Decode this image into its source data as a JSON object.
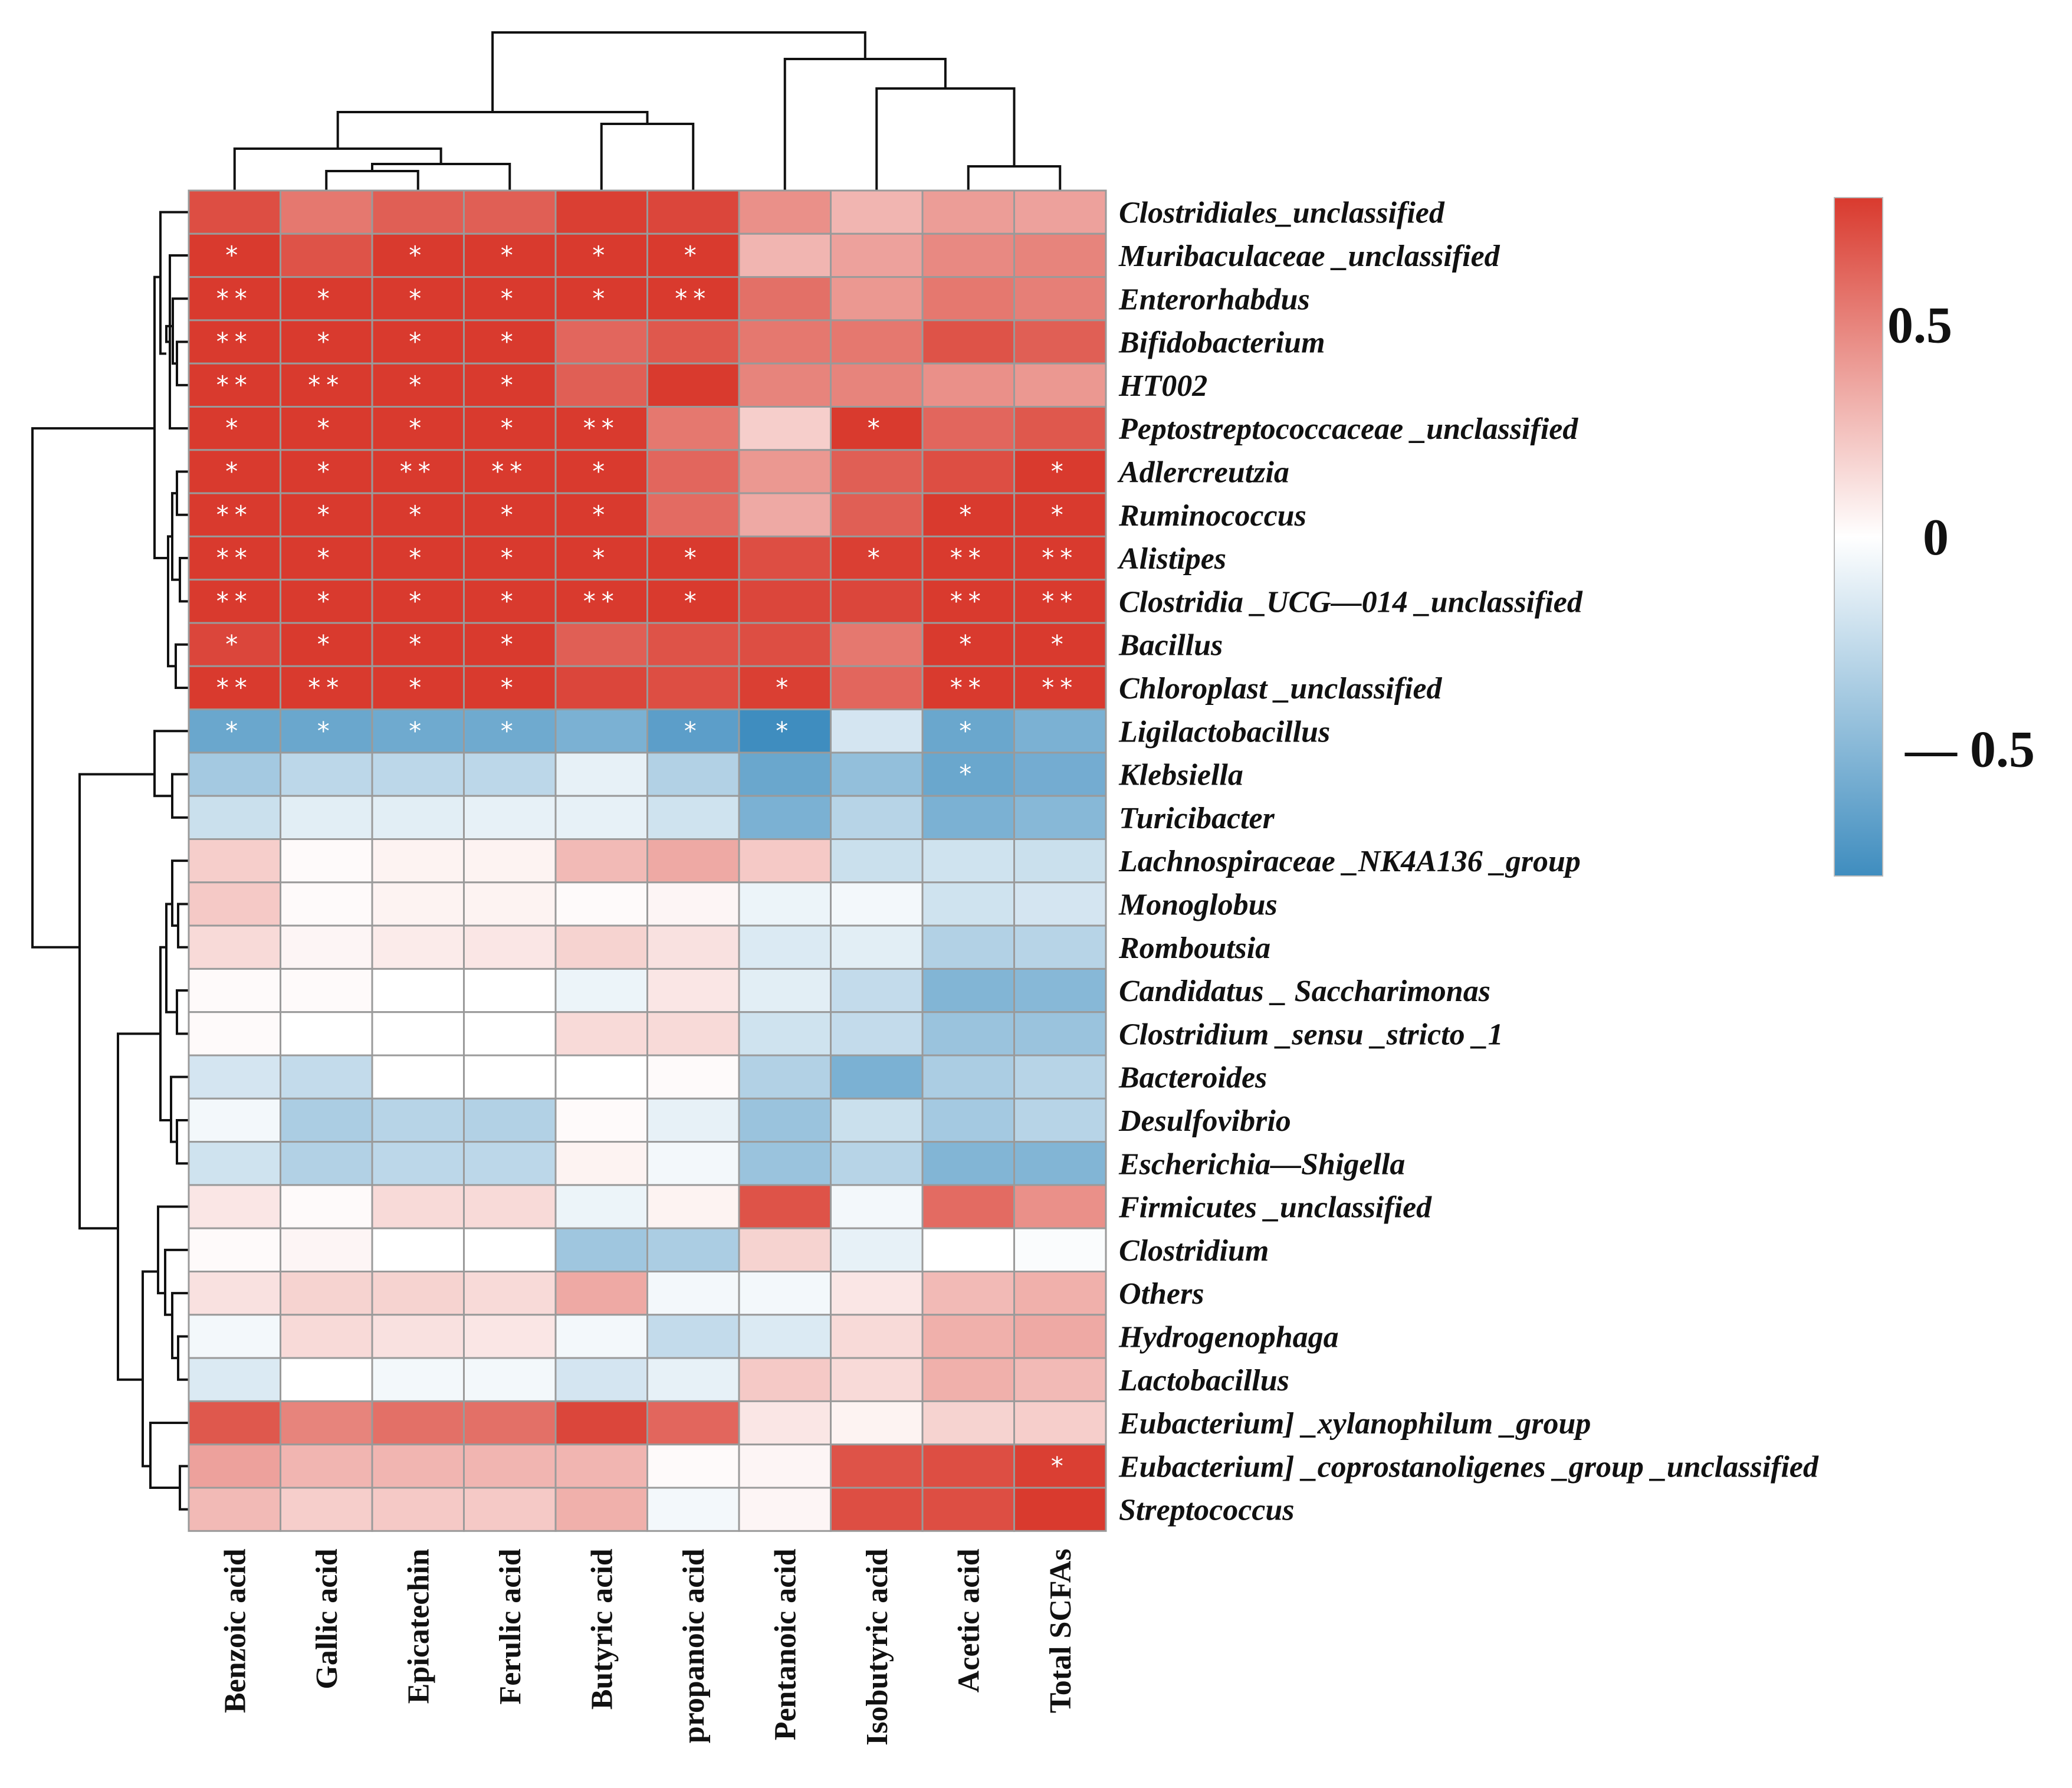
{
  "chart_data": {
    "type": "heatmap",
    "title": "",
    "columns": [
      "Benzoic acid",
      "Gallic acid",
      "Epicatechin",
      "Ferulic acid",
      "Butyric acid",
      "propanoic acid",
      "Pentanoic acid",
      "Isobutyric acid",
      "Acetic acid",
      "Total SCFAs"
    ],
    "rows": [
      "Clostridiales_unclassified",
      "Muribaculaceae _unclassified",
      "Enterorhabdus",
      "Bifidobacterium",
      "HT002",
      "Peptostreptococcaceae _unclassified",
      "Adlercreutzia",
      "Ruminococcus",
      "Alistipes",
      "Clostridia _UCG—014 _unclassified",
      "Bacillus",
      "Chloroplast _unclassified",
      "Ligilactobacillus",
      "Klebsiella",
      "Turicibacter",
      "Lachnospiraceae _NK4A136 _group",
      "Monoglobus",
      "Romboutsia",
      "Candidatus _ Saccharimonas",
      "Clostridium _sensu _stricto _1",
      "Bacteroides",
      "Desulfovibrio",
      "Escherichia—Shigella",
      "Firmicutes _unclassified",
      "Clostridium",
      "Others",
      "Hydrogenophaga",
      "Lactobacillus",
      "Eubacterium] _xylanophilum _group",
      "Eubacterium] _coprostanoligenes _group _unclassified",
      "Streptococcus"
    ],
    "values": [
      [
        0.72,
        0.55,
        0.65,
        0.65,
        0.78,
        0.75,
        0.45,
        0.3,
        0.4,
        0.38
      ],
      [
        0.82,
        0.7,
        0.82,
        0.82,
        0.85,
        0.85,
        0.3,
        0.38,
        0.48,
        0.5
      ],
      [
        0.88,
        0.82,
        0.85,
        0.85,
        0.82,
        0.95,
        0.58,
        0.42,
        0.55,
        0.52
      ],
      [
        0.88,
        0.82,
        0.85,
        0.85,
        0.62,
        0.68,
        0.55,
        0.55,
        0.7,
        0.65
      ],
      [
        0.9,
        0.88,
        0.85,
        0.85,
        0.65,
        0.8,
        0.5,
        0.5,
        0.45,
        0.42
      ],
      [
        0.85,
        0.85,
        0.85,
        0.85,
        0.92,
        0.55,
        0.2,
        0.82,
        0.62,
        0.68
      ],
      [
        0.88,
        0.85,
        0.88,
        0.88,
        0.8,
        0.62,
        0.42,
        0.65,
        0.72,
        0.8
      ],
      [
        0.88,
        0.85,
        0.85,
        0.85,
        0.8,
        0.6,
        0.35,
        0.65,
        0.8,
        0.85
      ],
      [
        0.88,
        0.85,
        0.85,
        0.85,
        0.82,
        0.85,
        0.72,
        0.78,
        0.9,
        0.92
      ],
      [
        0.88,
        0.85,
        0.85,
        0.85,
        0.92,
        0.85,
        0.75,
        0.75,
        0.92,
        0.92
      ],
      [
        0.75,
        0.82,
        0.85,
        0.85,
        0.65,
        0.7,
        0.72,
        0.55,
        0.85,
        0.85
      ],
      [
        0.88,
        0.9,
        0.85,
        0.85,
        0.75,
        0.72,
        0.78,
        0.62,
        0.92,
        0.95
      ],
      [
        -0.62,
        -0.62,
        -0.6,
        -0.6,
        -0.55,
        -0.68,
        -0.82,
        -0.18,
        -0.62,
        -0.55
      ],
      [
        -0.38,
        -0.28,
        -0.28,
        -0.28,
        -0.1,
        -0.32,
        -0.62,
        -0.45,
        -0.62,
        -0.58
      ],
      [
        -0.22,
        -0.12,
        -0.12,
        -0.1,
        -0.1,
        -0.2,
        -0.55,
        -0.3,
        -0.55,
        -0.5
      ],
      [
        0.2,
        0.02,
        0.05,
        0.05,
        0.28,
        0.35,
        0.22,
        -0.22,
        -0.2,
        -0.22
      ],
      [
        0.22,
        0.02,
        0.05,
        0.05,
        0.02,
        0.04,
        -0.08,
        -0.05,
        -0.2,
        -0.18
      ],
      [
        0.15,
        0.04,
        0.08,
        0.1,
        0.18,
        0.12,
        -0.15,
        -0.12,
        -0.32,
        -0.3
      ],
      [
        0.02,
        0.02,
        0.0,
        0.0,
        -0.08,
        0.1,
        -0.12,
        -0.25,
        -0.52,
        -0.5
      ],
      [
        0.02,
        0.0,
        0.0,
        0.0,
        0.15,
        0.15,
        -0.2,
        -0.25,
        -0.42,
        -0.42
      ],
      [
        -0.18,
        -0.25,
        0.0,
        0.0,
        0.0,
        0.02,
        -0.32,
        -0.55,
        -0.35,
        -0.3
      ],
      [
        -0.05,
        -0.35,
        -0.3,
        -0.32,
        0.02,
        -0.1,
        -0.42,
        -0.22,
        -0.38,
        -0.3
      ],
      [
        -0.2,
        -0.32,
        -0.28,
        -0.28,
        0.05,
        -0.05,
        -0.42,
        -0.3,
        -0.52,
        -0.52
      ],
      [
        0.1,
        0.02,
        0.15,
        0.15,
        -0.08,
        0.05,
        0.7,
        -0.05,
        0.6,
        0.45
      ],
      [
        0.02,
        0.04,
        0.0,
        0.0,
        -0.4,
        -0.35,
        0.18,
        -0.1,
        0.0,
        -0.02
      ],
      [
        0.12,
        0.18,
        0.18,
        0.15,
        0.35,
        -0.05,
        -0.05,
        0.1,
        0.28,
        0.32
      ],
      [
        -0.05,
        0.15,
        0.12,
        0.1,
        -0.05,
        -0.25,
        -0.15,
        0.15,
        0.32,
        0.35
      ],
      [
        -0.15,
        0.0,
        -0.05,
        -0.05,
        -0.18,
        -0.1,
        0.22,
        0.15,
        0.32,
        0.28
      ],
      [
        0.68,
        0.5,
        0.58,
        0.58,
        0.75,
        0.62,
        0.1,
        0.05,
        0.18,
        0.2
      ],
      [
        0.38,
        0.3,
        0.3,
        0.3,
        0.3,
        0.02,
        0.04,
        0.7,
        0.72,
        0.78
      ],
      [
        0.28,
        0.2,
        0.22,
        0.22,
        0.32,
        -0.05,
        0.04,
        0.72,
        0.72,
        0.8
      ]
    ],
    "significance": [
      [
        "",
        "",
        "",
        "",
        "",
        "",
        "",
        "",
        "",
        ""
      ],
      [
        "*",
        "",
        "*",
        "*",
        "*",
        "*",
        "",
        "",
        "",
        ""
      ],
      [
        "**",
        "*",
        "*",
        "*",
        "*",
        "**",
        "",
        "",
        "",
        ""
      ],
      [
        "**",
        "*",
        "*",
        "*",
        "",
        "",
        "",
        "",
        "",
        ""
      ],
      [
        "**",
        "**",
        "*",
        "*",
        "",
        "",
        "",
        "",
        "",
        ""
      ],
      [
        "*",
        "*",
        "*",
        "*",
        "**",
        "",
        "",
        "*",
        "",
        ""
      ],
      [
        "*",
        "*",
        "**",
        "**",
        "*",
        "",
        "",
        "",
        "",
        "*"
      ],
      [
        "**",
        "*",
        "*",
        "*",
        "*",
        "",
        "",
        "",
        "*",
        "*"
      ],
      [
        "**",
        "*",
        "*",
        "*",
        "*",
        "*",
        "",
        "*",
        "**",
        "**"
      ],
      [
        "**",
        "*",
        "*",
        "*",
        "**",
        "*",
        "",
        "",
        "**",
        "**"
      ],
      [
        "*",
        "*",
        "*",
        "*",
        "",
        "",
        "",
        "",
        "*",
        "*"
      ],
      [
        "**",
        "**",
        "*",
        "*",
        "",
        "",
        "*",
        "",
        "**",
        "**"
      ],
      [
        "*",
        "*",
        "*",
        "*",
        "",
        "*",
        "*",
        "",
        "*",
        ""
      ],
      [
        "",
        "",
        "",
        "",
        "",
        "",
        "",
        "",
        "*",
        ""
      ],
      [
        "",
        "",
        "",
        "",
        "",
        "",
        "",
        "",
        "",
        ""
      ],
      [
        "",
        "",
        "",
        "",
        "",
        "",
        "",
        "",
        "",
        ""
      ],
      [
        "",
        "",
        "",
        "",
        "",
        "",
        "",
        "",
        "",
        ""
      ],
      [
        "",
        "",
        "",
        "",
        "",
        "",
        "",
        "",
        "",
        ""
      ],
      [
        "",
        "",
        "",
        "",
        "",
        "",
        "",
        "",
        "",
        ""
      ],
      [
        "",
        "",
        "",
        "",
        "",
        "",
        "",
        "",
        "",
        ""
      ],
      [
        "",
        "",
        "",
        "",
        "",
        "",
        "",
        "",
        "",
        ""
      ],
      [
        "",
        "",
        "",
        "",
        "",
        "",
        "",
        "",
        "",
        ""
      ],
      [
        "",
        "",
        "",
        "",
        "",
        "",
        "",
        "",
        "",
        ""
      ],
      [
        "",
        "",
        "",
        "",
        "",
        "",
        "",
        "",
        "",
        ""
      ],
      [
        "",
        "",
        "",
        "",
        "",
        "",
        "",
        "",
        "",
        ""
      ],
      [
        "",
        "",
        "",
        "",
        "",
        "",
        "",
        "",
        "",
        ""
      ],
      [
        "",
        "",
        "",
        "",
        "",
        "",
        "",
        "",
        "",
        ""
      ],
      [
        "",
        "",
        "",
        "",
        "",
        "",
        "",
        "",
        "",
        ""
      ],
      [
        "",
        "",
        "",
        "",
        "",
        "",
        "",
        "",
        "",
        ""
      ],
      [
        "",
        "",
        "",
        "",
        "",
        "",
        "",
        "",
        "",
        "*"
      ],
      [
        "",
        "",
        "",
        "",
        "",
        "",
        "",
        "",
        "",
        ""
      ]
    ],
    "color_scale": {
      "min": -0.8,
      "max": 0.8,
      "low_color": "#3f8dbf",
      "mid_color": "#ffffff",
      "high_color": "#d93a2e",
      "tick_labels": [
        "0.5",
        "0",
        "— 0.5"
      ],
      "tick_values": [
        0.5,
        0,
        -0.5
      ]
    },
    "legend_position": "right",
    "dendrograms": [
      "top-columns",
      "left-rows"
    ]
  }
}
